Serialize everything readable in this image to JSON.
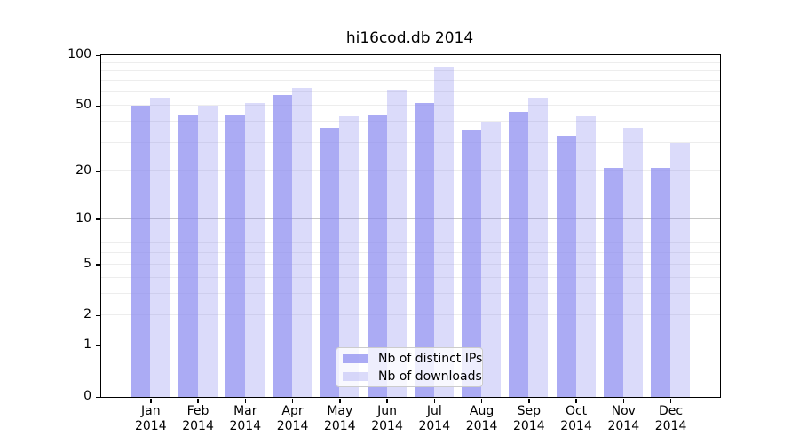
{
  "chart_data": {
    "type": "bar",
    "title": "hi16cod.db 2014",
    "yscale": "log(1+x)",
    "ylim": [
      0,
      100
    ],
    "y_ticks": [
      0,
      1,
      2,
      5,
      10,
      20,
      50,
      100
    ],
    "gridlines": {
      "major": [
        1,
        10
      ],
      "minor": [
        2,
        3,
        4,
        5,
        6,
        7,
        8,
        9,
        20,
        30,
        40,
        50,
        60,
        70,
        80,
        90
      ]
    },
    "grid": true,
    "months": [
      "Jan",
      "Feb",
      "Mar",
      "Apr",
      "May",
      "Jun",
      "Jul",
      "Aug",
      "Sep",
      "Oct",
      "Nov",
      "Dec"
    ],
    "year_label": "2014",
    "categories": [
      "Jan 2014",
      "Feb 2014",
      "Mar 2014",
      "Apr 2014",
      "May 2014",
      "Jun 2014",
      "Jul 2014",
      "Aug 2014",
      "Sep 2014",
      "Oct 2014",
      "Nov 2014",
      "Dec 2014"
    ],
    "series": [
      {
        "name": "Nb of distinct IPs",
        "color": "rgba(136,136,240,0.70)",
        "values": [
          50,
          44,
          44,
          58,
          37,
          44,
          52,
          36,
          46,
          33,
          21,
          21
        ]
      },
      {
        "name": "Nb of downloads",
        "color": "rgba(136,136,240,0.30)",
        "values": [
          56,
          50,
          52,
          64,
          43,
          62,
          84,
          40,
          56,
          43,
          37,
          30
        ]
      }
    ],
    "legend_position": "lower center",
    "colors": {
      "grid_major": "#c6c6c6",
      "grid_minor": "#ededed",
      "axis_frame": "#000000",
      "legend_border": "#cccccc",
      "background": "#ffffff"
    }
  }
}
